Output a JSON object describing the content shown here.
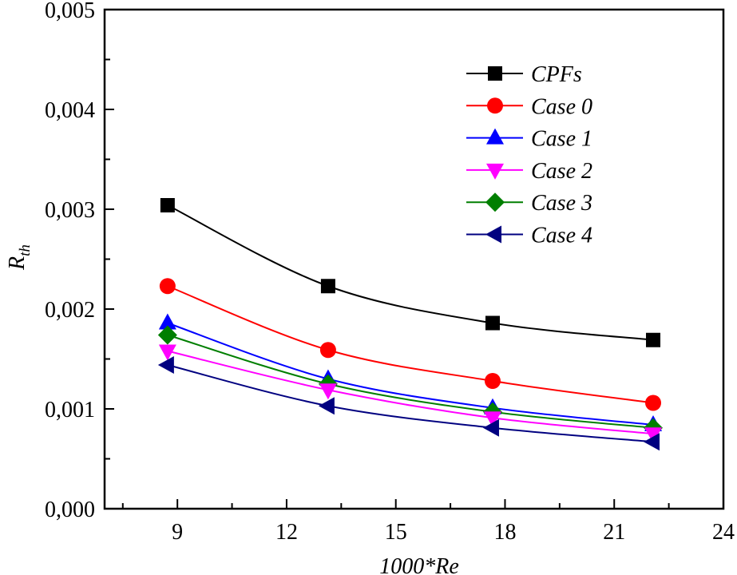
{
  "chart_data": {
    "type": "line",
    "title": "",
    "xlabel": "1000*Re",
    "ylabel": "R",
    "ylabel_subscript": "th",
    "xlim": [
      7,
      24
    ],
    "ylim": [
      0,
      0.005
    ],
    "x_ticks": [
      9,
      12,
      15,
      18,
      21,
      24
    ],
    "x_tick_labels": [
      "9",
      "12",
      "15",
      "18",
      "21",
      "24"
    ],
    "x_minor_step": 1.5,
    "y_ticks": [
      0,
      0.001,
      0.002,
      0.003,
      0.004,
      0.005
    ],
    "y_tick_labels": [
      "0,000",
      "0,001",
      "0,002",
      "0,003",
      "0,004",
      "0,005"
    ],
    "y_minor_step": 0.0005,
    "grid": false,
    "legend_position": "top-right",
    "x": [
      8.73,
      13.14,
      17.66,
      22.07
    ],
    "series": [
      {
        "name": "CPFs",
        "color": "#000000",
        "marker": "square",
        "values": [
          0.00304,
          0.00223,
          0.00186,
          0.00169
        ]
      },
      {
        "name": "Case 0",
        "color": "#ff0000",
        "marker": "circle",
        "values": [
          0.00223,
          0.00159,
          0.00128,
          0.00106
        ]
      },
      {
        "name": "Case 1",
        "color": "#0000ff",
        "marker": "triangle-up",
        "values": [
          0.00186,
          0.0013,
          0.00101,
          0.00084
        ]
      },
      {
        "name": "Case 2",
        "color": "#ff00ff",
        "marker": "triangle-down",
        "values": [
          0.00158,
          0.00119,
          0.00091,
          0.00075
        ]
      },
      {
        "name": "Case 3",
        "color": "#007f00",
        "marker": "diamond",
        "values": [
          0.00174,
          0.00125,
          0.00097,
          0.00081
        ]
      },
      {
        "name": "Case 4",
        "color": "#000080",
        "marker": "triangle-left",
        "values": [
          0.00144,
          0.00103,
          0.00081,
          0.00067
        ]
      }
    ]
  }
}
